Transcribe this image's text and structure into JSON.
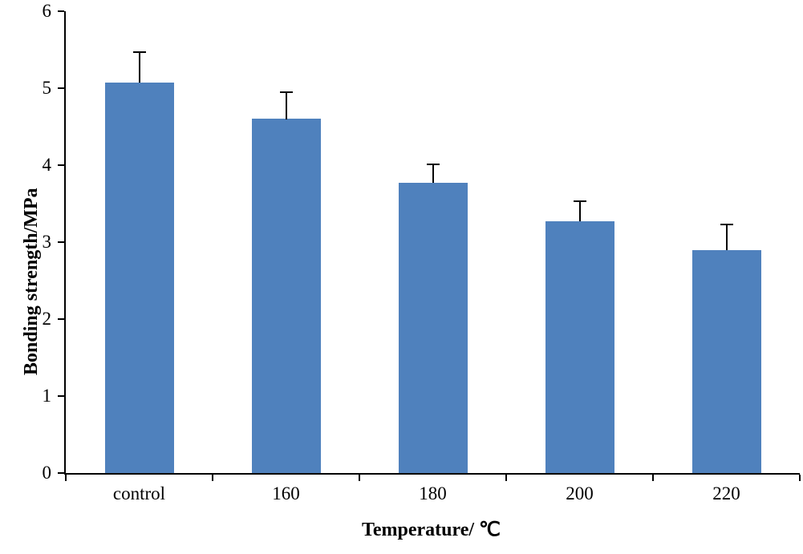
{
  "chart_data": {
    "type": "bar",
    "categories": [
      "control",
      "160",
      "180",
      "200",
      "220"
    ],
    "values": [
      5.07,
      4.6,
      3.77,
      3.27,
      2.9
    ],
    "errors": [
      0.4,
      0.35,
      0.24,
      0.26,
      0.33
    ],
    "title": "",
    "xlabel": "Temperature/ ℃",
    "ylabel": "Bonding strength/MPa",
    "ylim": [
      0,
      6
    ],
    "yticks": [
      0,
      1,
      2,
      3,
      4,
      5,
      6
    ],
    "bar_color": "#4F81BD",
    "error_color": "#000000",
    "axis_color": "#000000",
    "grid": false,
    "legend": false,
    "bar_width_fraction": 0.47
  }
}
